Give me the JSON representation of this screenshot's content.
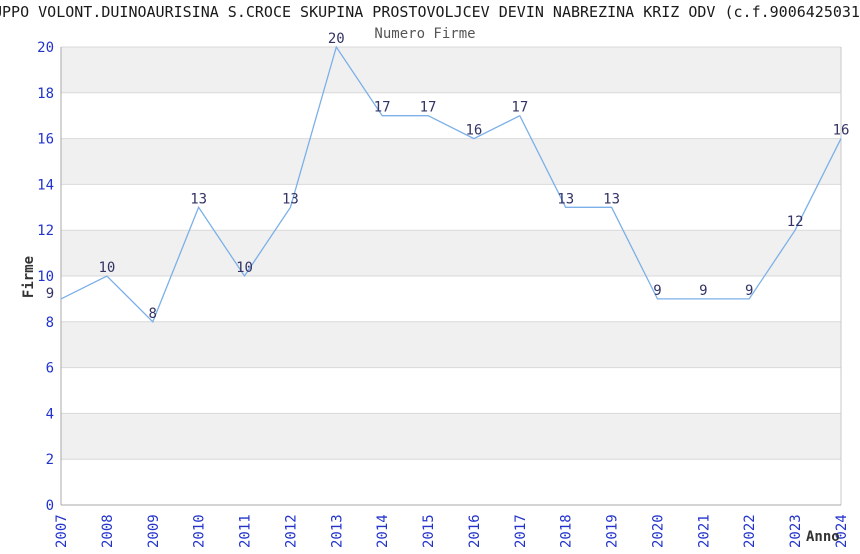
{
  "header": {
    "title": "UPPO VOLONT.DUINOAURISINA S.CROCE SKUPINA PROSTOVOLJCEV DEVIN NABREZINA KRIZ ODV (c.f.9006425031"
  },
  "chart_data": {
    "type": "line",
    "title": "Numero Firme",
    "xlabel": "Anno",
    "ylabel": "Firme",
    "x": [
      "2007",
      "2008",
      "2009",
      "2010",
      "2011",
      "2012",
      "2013",
      "2014",
      "2015",
      "2016",
      "2017",
      "2018",
      "2019",
      "2020",
      "2021",
      "2022",
      "2023",
      "2024"
    ],
    "series": [
      {
        "name": "Numero Firme",
        "values": [
          9,
          10,
          8,
          13,
          10,
          13,
          20,
          17,
          17,
          16,
          17,
          13,
          13,
          9,
          9,
          9,
          12,
          16
        ]
      }
    ],
    "ylim": [
      0,
      20
    ],
    "yticks": [
      0,
      2,
      4,
      6,
      8,
      10,
      12,
      14,
      16,
      18,
      20
    ],
    "grid": true,
    "background_bands": "alternating gray every 2 units",
    "point_labels_visible": true,
    "legend": "none"
  },
  "colors": {
    "line": "#7cb0e8",
    "data_label": "#333366",
    "tick_label": "#2233cc",
    "band": "#f0f0f0",
    "gridline": "#d9d9d9",
    "axis": "#aaaaaa",
    "border": "#c8c8c8",
    "title": "#1a1a1a",
    "subtitle": "#555555",
    "axis_title": "#333333"
  }
}
